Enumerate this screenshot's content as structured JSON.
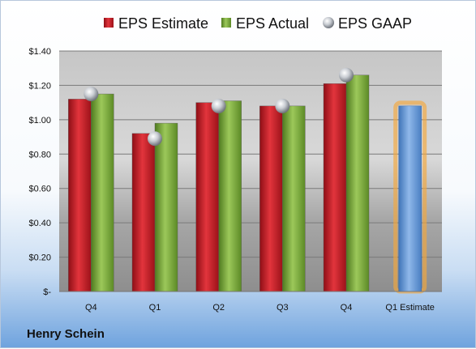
{
  "footer_label": "Henry Schein",
  "chart_data": {
    "type": "bar",
    "categories": [
      "Q4",
      "Q1",
      "Q2",
      "Q3",
      "Q4",
      "Q1 Estimate"
    ],
    "series": [
      {
        "name": "EPS Estimate",
        "values": [
          1.12,
          0.92,
          1.1,
          1.08,
          1.21,
          null
        ],
        "color": "#d0202a"
      },
      {
        "name": "EPS Actual",
        "values": [
          1.15,
          0.98,
          1.11,
          1.08,
          1.26,
          null
        ],
        "color": "#7fae3c"
      },
      {
        "name": "EPS GAAP",
        "type": "scatter",
        "values": [
          1.15,
          0.89,
          1.08,
          1.08,
          1.26,
          null
        ],
        "color": "#b9bec6"
      },
      {
        "values": [
          null,
          null,
          null,
          null,
          null,
          1.08
        ],
        "color": "#6d9fd8",
        "highlight": "#f5a83c"
      }
    ],
    "y_ticks": [
      "$-",
      "$0.20",
      "$0.40",
      "$0.60",
      "$0.80",
      "$1.00",
      "$1.20",
      "$1.40"
    ],
    "ylim": [
      0,
      1.4
    ],
    "y_step": 0.2,
    "grid": true,
    "legend_position": "top"
  }
}
